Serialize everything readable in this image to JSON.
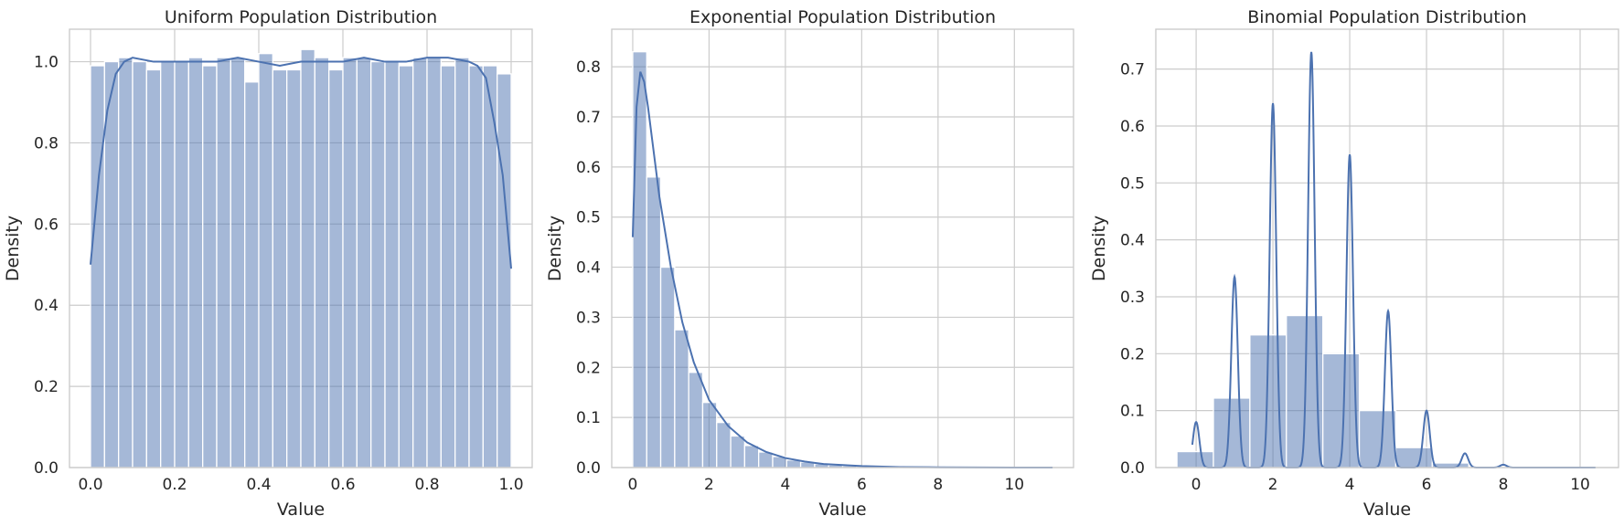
{
  "chart_data": [
    {
      "type": "histogram",
      "title": "Uniform Population Distribution",
      "xlabel": "Value",
      "ylabel": "Density",
      "xlim": [
        -0.05,
        1.05
      ],
      "ylim": [
        0,
        1.08
      ],
      "xticks": [
        "0.0",
        "0.2",
        "0.4",
        "0.6",
        "0.8",
        "1.0"
      ],
      "yticks": [
        "0.0",
        "0.2",
        "0.4",
        "0.6",
        "0.8",
        "1.0"
      ],
      "grid": true,
      "bin_edges": [
        0.0,
        0.0333,
        0.0667,
        0.1,
        0.1333,
        0.1667,
        0.2,
        0.2333,
        0.2667,
        0.3,
        0.3333,
        0.3667,
        0.4,
        0.4333,
        0.4667,
        0.5,
        0.5333,
        0.5667,
        0.6,
        0.6333,
        0.6667,
        0.7,
        0.7333,
        0.7667,
        0.8,
        0.8333,
        0.8667,
        0.9,
        0.9333,
        0.9667,
        1.0
      ],
      "density": [
        0.99,
        1.0,
        1.01,
        1.0,
        0.98,
        1.0,
        1.0,
        1.01,
        0.99,
        1.01,
        1.01,
        0.95,
        1.02,
        0.98,
        0.98,
        1.03,
        1.01,
        0.98,
        1.01,
        1.01,
        1.0,
        1.0,
        0.99,
        1.01,
        1.01,
        0.99,
        1.01,
        0.99,
        0.99,
        0.97
      ],
      "kde": {
        "x": [
          0.0,
          0.02,
          0.04,
          0.06,
          0.08,
          0.1,
          0.15,
          0.2,
          0.25,
          0.3,
          0.35,
          0.4,
          0.45,
          0.5,
          0.55,
          0.6,
          0.65,
          0.7,
          0.75,
          0.8,
          0.85,
          0.9,
          0.92,
          0.94,
          0.96,
          0.98,
          1.0
        ],
        "y": [
          0.5,
          0.72,
          0.88,
          0.97,
          1.0,
          1.01,
          1.0,
          1.0,
          1.0,
          1.0,
          1.01,
          1.0,
          0.99,
          1.0,
          1.0,
          1.0,
          1.01,
          1.0,
          1.0,
          1.01,
          1.01,
          1.0,
          0.99,
          0.96,
          0.85,
          0.72,
          0.49
        ]
      }
    },
    {
      "type": "histogram",
      "title": "Exponential Population Distribution",
      "xlabel": "Value",
      "ylabel": "Density",
      "xlim": [
        -0.55,
        11.55
      ],
      "ylim": [
        0,
        0.875
      ],
      "xticks": [
        "0",
        "2",
        "4",
        "6",
        "8",
        "10"
      ],
      "yticks": [
        "0.0",
        "0.1",
        "0.2",
        "0.3",
        "0.4",
        "0.5",
        "0.6",
        "0.7",
        "0.8"
      ],
      "grid": true,
      "bin_edges": [
        0.0,
        0.367,
        0.733,
        1.1,
        1.467,
        1.833,
        2.2,
        2.567,
        2.933,
        3.3,
        3.667,
        4.033,
        4.4,
        4.767,
        5.133,
        5.5,
        5.867,
        6.233,
        6.6,
        6.967,
        7.333,
        7.7,
        8.067,
        8.433,
        8.8,
        9.167,
        9.533,
        9.9,
        10.267,
        10.633,
        11.0
      ],
      "density": [
        0.83,
        0.58,
        0.4,
        0.275,
        0.19,
        0.13,
        0.09,
        0.063,
        0.044,
        0.031,
        0.022,
        0.015,
        0.011,
        0.0075,
        0.0052,
        0.0036,
        0.0025,
        0.0018,
        0.0012,
        0.0008,
        0.0006,
        0.0004,
        0.0003,
        0.0002,
        0.00015,
        0.0001,
        0.0001,
        0.0001,
        0.0,
        0.0
      ],
      "kde": {
        "x": [
          0.0,
          0.1,
          0.2,
          0.3,
          0.4,
          0.5,
          0.7,
          1.0,
          1.3,
          1.6,
          2.0,
          2.5,
          3.0,
          3.5,
          4.0,
          4.5,
          5.0,
          6.0,
          7.0,
          8.0,
          9.0,
          10.0,
          11.0
        ],
        "y": [
          0.46,
          0.72,
          0.79,
          0.77,
          0.72,
          0.66,
          0.54,
          0.4,
          0.29,
          0.21,
          0.135,
          0.083,
          0.05,
          0.031,
          0.019,
          0.012,
          0.007,
          0.003,
          0.001,
          0.0005,
          0.0002,
          0.0001,
          0.0
        ]
      }
    },
    {
      "type": "histogram",
      "title": "Binomial Population Distribution",
      "xlabel": "Value",
      "ylabel": "Density",
      "xlim": [
        -1.05,
        11.0
      ],
      "ylim": [
        0,
        0.77
      ],
      "xticks": [
        "0",
        "2",
        "4",
        "6",
        "8",
        "10"
      ],
      "yticks": [
        "0.0",
        "0.1",
        "0.2",
        "0.3",
        "0.4",
        "0.5",
        "0.6",
        "0.7"
      ],
      "grid": true,
      "bin_edges": [
        -0.5,
        0.45,
        1.4,
        2.35,
        3.3,
        4.25,
        5.2,
        6.15,
        7.1,
        8.05,
        9.0,
        9.95,
        10.5
      ],
      "density": [
        0.028,
        0.122,
        0.233,
        0.267,
        0.2,
        0.1,
        0.035,
        0.008,
        0.002,
        0.0,
        0.0,
        0.0
      ],
      "kde": {
        "peaks": [
          {
            "x": 0,
            "height": 0.08
          },
          {
            "x": 1,
            "height": 0.335
          },
          {
            "x": 2,
            "height": 0.64
          },
          {
            "x": 3,
            "height": 0.73
          },
          {
            "x": 4,
            "height": 0.55
          },
          {
            "x": 5,
            "height": 0.275
          },
          {
            "x": 6,
            "height": 0.1
          },
          {
            "x": 7,
            "height": 0.025
          },
          {
            "x": 8,
            "height": 0.005
          }
        ],
        "x_range": [
          -0.1,
          10.4
        ]
      }
    }
  ]
}
